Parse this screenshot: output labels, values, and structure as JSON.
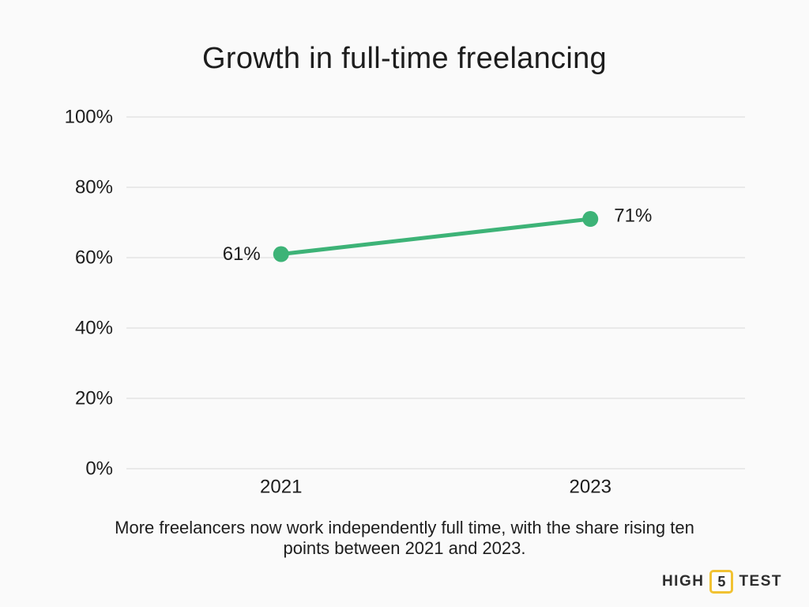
{
  "title": "Growth in full-time freelancing",
  "caption": "More freelancers now work independently full time, with the share rising ten\npoints between 2021 and 2023.",
  "logo": {
    "left": "HIGH",
    "boxed": "5",
    "right": "TEST",
    "box_border_color": "#F1C232",
    "text_color": "#2d2d2d"
  },
  "colors": {
    "background": "#fafafa",
    "text": "#1d1d1d",
    "gridline": "#e3e3e3",
    "series_green": "#3DB377"
  },
  "chart_data": {
    "type": "line",
    "title": "Growth in full-time freelancing",
    "categories": [
      "2021",
      "2023"
    ],
    "series": [
      {
        "values": [
          61,
          71
        ],
        "point_labels": [
          "61%",
          "71%"
        ],
        "color": "#3DB377"
      }
    ],
    "xlabel": "",
    "ylabel": "",
    "ylim": [
      0,
      100
    ],
    "y_tick_step": 20,
    "y_tick_labels": [
      "0%",
      "20%",
      "40%",
      "60%",
      "80%",
      "100%"
    ],
    "grid": true,
    "legend": false
  }
}
